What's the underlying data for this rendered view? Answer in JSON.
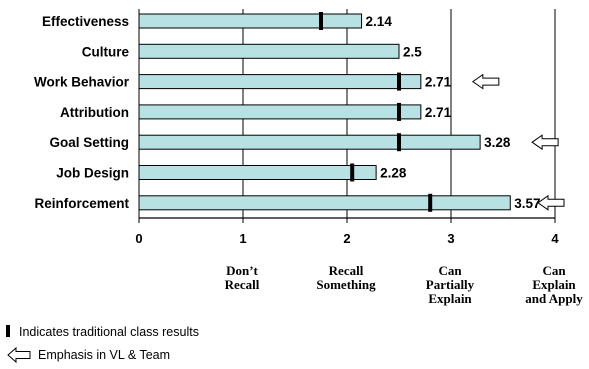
{
  "chart_data": {
    "type": "bar",
    "orientation": "horizontal",
    "categories": [
      "Effectiveness",
      "Culture",
      "Work Behavior",
      "Attribution",
      "Goal Setting",
      "Job Design",
      "Reinforcement"
    ],
    "values": [
      2.14,
      2.5,
      2.71,
      2.71,
      3.28,
      2.28,
      3.57
    ],
    "value_labels": [
      "2.14",
      "2.5",
      "2.71",
      "2.71",
      "3.28",
      "2.28",
      "3.57"
    ],
    "traditional_class_results": [
      1.75,
      null,
      2.5,
      2.5,
      2.5,
      2.05,
      2.8
    ],
    "emphasis": [
      false,
      false,
      true,
      false,
      true,
      false,
      true
    ],
    "xlim": [
      0,
      4
    ],
    "x_ticks": [
      "0",
      "1",
      "2",
      "3",
      "4"
    ],
    "grid": true,
    "scale_descriptors": [
      {
        "x": 1,
        "lines": [
          "Don’t",
          "Recall"
        ]
      },
      {
        "x": 2,
        "lines": [
          "Recall",
          "Something"
        ]
      },
      {
        "x": 3,
        "lines": [
          "Can",
          "Partially",
          "Explain"
        ]
      },
      {
        "x": 4,
        "lines": [
          "Can",
          "Explain",
          "and Apply"
        ]
      }
    ],
    "legend": [
      {
        "symbol": "black-marker",
        "label": "Indicates traditional class results"
      },
      {
        "symbol": "left-arrow",
        "label": "Emphasis in VL & Team"
      }
    ],
    "colors": {
      "bar_fill": "#b7e1e3",
      "bar_stroke": "#000000",
      "marker": "#000000",
      "arrow_fill": "#ffffff"
    }
  }
}
